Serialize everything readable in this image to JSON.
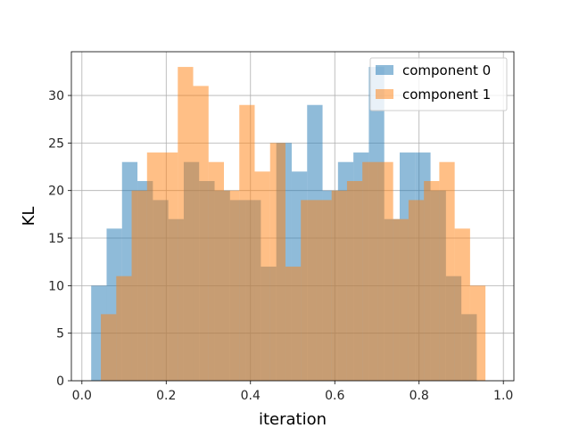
{
  "chart_data": {
    "type": "bar",
    "subtype": "overlapping-histogram",
    "title": "",
    "xlabel": "iteration",
    "ylabel": "KL",
    "xlim": [
      -0.025,
      1.025
    ],
    "ylim": [
      0,
      34.6
    ],
    "x_ticks": [
      0.0,
      0.2,
      0.4,
      0.6,
      0.8,
      1.0
    ],
    "x_tick_labels": [
      "0.0",
      "0.2",
      "0.4",
      "0.6",
      "0.8",
      "1.0"
    ],
    "y_ticks": [
      0,
      5,
      10,
      15,
      20,
      25,
      30
    ],
    "y_tick_labels": [
      "0",
      "5",
      "10",
      "15",
      "20",
      "25",
      "30"
    ],
    "grid": true,
    "legend_position": "top-right",
    "series": [
      {
        "name": "component 0",
        "color": "#1f77b4",
        "alpha": 0.5,
        "bin_edges": [
          0.022,
          0.0586,
          0.0952,
          0.1318,
          0.1684,
          0.205,
          0.2416,
          0.2782,
          0.3148,
          0.3514,
          0.388,
          0.4246,
          0.4612,
          0.4978,
          0.5344,
          0.571,
          0.6076,
          0.6442,
          0.6808,
          0.7174,
          0.754,
          0.7906,
          0.8272,
          0.8638,
          0.9004,
          0.937
        ],
        "counts": [
          10,
          16,
          23,
          21,
          19,
          17,
          23,
          21,
          20,
          19,
          19,
          12,
          25,
          22,
          29,
          20,
          23,
          24,
          33,
          17,
          24,
          24,
          20,
          11,
          7
        ]
      },
      {
        "name": "component 1",
        "color": "#ff7f0e",
        "alpha": 0.5,
        "bin_edges": [
          0.045,
          0.0815,
          0.118,
          0.1545,
          0.191,
          0.2275,
          0.264,
          0.3005,
          0.337,
          0.3735,
          0.41,
          0.4465,
          0.483,
          0.5195,
          0.556,
          0.5925,
          0.629,
          0.6655,
          0.702,
          0.7385,
          0.775,
          0.8115,
          0.848,
          0.8845,
          0.921,
          0.9575
        ],
        "counts": [
          7,
          11,
          20,
          24,
          24,
          33,
          31,
          23,
          20,
          29,
          22,
          25,
          12,
          19,
          19,
          20,
          21,
          23,
          23,
          17,
          19,
          21,
          23,
          16,
          10
        ]
      }
    ]
  }
}
